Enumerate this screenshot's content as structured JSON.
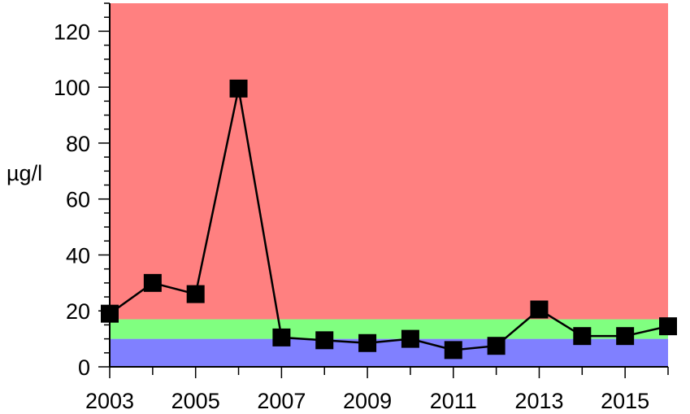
{
  "chart_data": {
    "type": "line",
    "title": "",
    "xlabel": "",
    "ylabel": "µg/l",
    "xlim": [
      2003,
      2016
    ],
    "ylim": [
      0,
      130
    ],
    "x_ticks": [
      2003,
      2005,
      2007,
      2009,
      2011,
      2013,
      2015
    ],
    "x_tick_labels": [
      "2003",
      "2005",
      "2007",
      "2009",
      "2011",
      "2013",
      "2015"
    ],
    "y_ticks": [
      0,
      20,
      40,
      60,
      80,
      100,
      120
    ],
    "y_tick_labels": [
      "0",
      "20",
      "40",
      "60",
      "80",
      "100",
      "120"
    ],
    "grid": false,
    "legend": "none",
    "bands": [
      {
        "from": 0,
        "to": 10,
        "color": "#8080ff"
      },
      {
        "from": 10,
        "to": 17,
        "color": "#80ff80"
      },
      {
        "from": 17,
        "to": 130,
        "color": "#ff8080"
      }
    ],
    "series": [
      {
        "x": [
          2003,
          2004,
          2005,
          2006,
          2007,
          2008,
          2009,
          2010,
          2011,
          2012,
          2013,
          2014,
          2015,
          2016
        ],
        "values": [
          19,
          30,
          26,
          99.5,
          10.5,
          9.5,
          8.5,
          10,
          6,
          7.5,
          20.5,
          11,
          11,
          14.5
        ],
        "color": "#000000",
        "marker": "square"
      }
    ]
  }
}
